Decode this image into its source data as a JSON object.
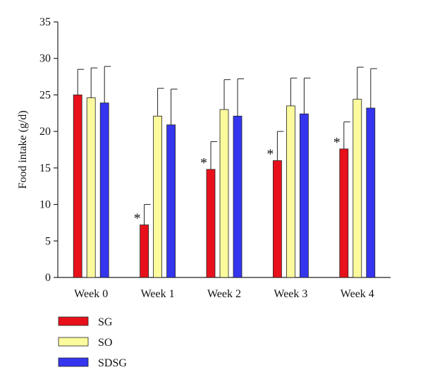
{
  "chart_data": {
    "type": "bar",
    "title": "",
    "xlabel": "",
    "ylabel": "Food intake (g/d)",
    "ylim": [
      0,
      35
    ],
    "yticks": [
      0,
      5,
      10,
      15,
      20,
      25,
      30,
      35
    ],
    "categories": [
      "Week 0",
      "Week 1",
      "Week 2",
      "Week 3",
      "Week 4"
    ],
    "error_bars": "upper",
    "grid": false,
    "legend_position": "bottom-left",
    "series": [
      {
        "name": "SG",
        "color": "#e8111b",
        "values": [
          25.0,
          7.2,
          14.8,
          16.0,
          17.6
        ],
        "errors": [
          3.5,
          2.8,
          3.8,
          4.0,
          3.7
        ],
        "annotations": [
          "",
          "*",
          "*",
          "*",
          "*"
        ]
      },
      {
        "name": "SO",
        "color": "#fbfb9d",
        "values": [
          24.6,
          22.1,
          23.0,
          23.5,
          24.4
        ],
        "errors": [
          4.1,
          3.8,
          4.1,
          3.8,
          4.4
        ]
      },
      {
        "name": "SDSG",
        "color": "#3535f0",
        "values": [
          23.9,
          20.9,
          22.1,
          22.4,
          23.2
        ],
        "errors": [
          5.0,
          4.9,
          5.1,
          4.9,
          5.4
        ]
      }
    ]
  }
}
